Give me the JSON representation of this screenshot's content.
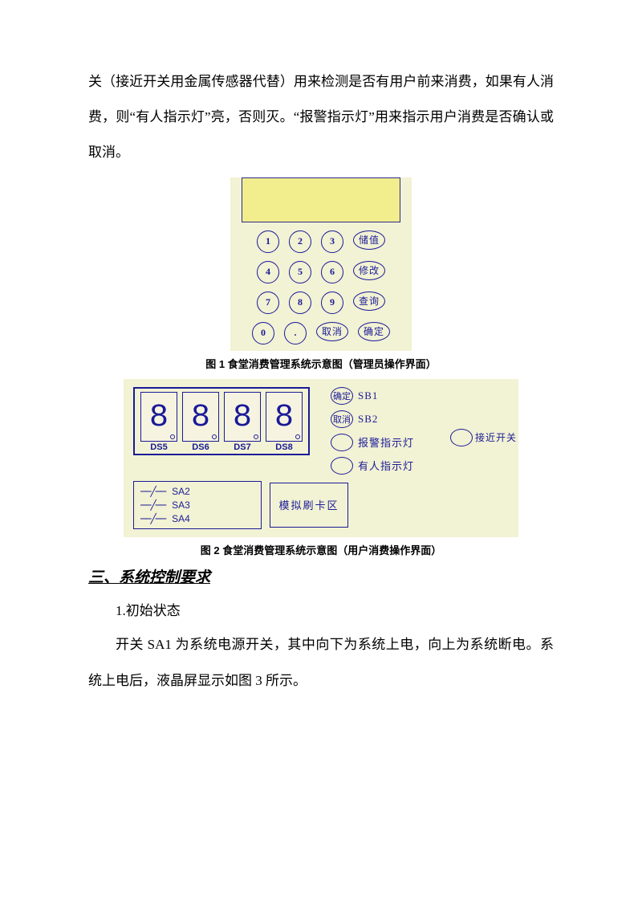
{
  "text": {
    "para1": "关（接近开关用金属传感器代替）用来检测是否有用户前来消费，如果有人消费，则“有人指示灯”亮，否则灭。“报警指示灯”用来指示用户消费是否确认或取消。",
    "caption1": "图 1  食堂消费管理系统示意图（管理员操作界面）",
    "caption2": "图 2  食堂消费管理系统示意图（用户消费操作界面）",
    "section": "三、系统控制要求",
    "sub1": "1.初始状态",
    "para2": "开关 SA1 为系统电源开关，其中向下为系统上电，向上为系统断电。系统上电后，液晶屏显示如图 3 所示。"
  },
  "fig1": {
    "rows": [
      {
        "nums": [
          "1",
          "2",
          "3"
        ],
        "fn": "储值"
      },
      {
        "nums": [
          "4",
          "5",
          "6"
        ],
        "fn": "修改"
      },
      {
        "nums": [
          "7",
          "8",
          "9"
        ],
        "fn": "查询"
      },
      {
        "nums": [
          "0",
          "."
        ],
        "fn2": [
          "取消",
          "确定"
        ]
      }
    ],
    "colors": {
      "panel": "#f2f2d4",
      "screen": "#f2ee8e",
      "border": "#1a1a99",
      "ink": "#1a1a99"
    }
  },
  "fig2": {
    "segments": [
      "DS5",
      "DS6",
      "DS7",
      "DS8"
    ],
    "glyph": "8",
    "right": [
      {
        "btn": "确定",
        "code": "SB1"
      },
      {
        "btn": "取消",
        "code": "SB2"
      }
    ],
    "indicators": [
      "报警指示灯",
      "有人指示灯"
    ],
    "proximity": "接近开关",
    "switches": [
      "SA2",
      "SA3",
      "SA4"
    ],
    "card_area": "模拟刷卡区",
    "colors": {
      "panel": "#f2f2d4",
      "border": "#1a1a99",
      "ink": "#1a1a99"
    }
  }
}
